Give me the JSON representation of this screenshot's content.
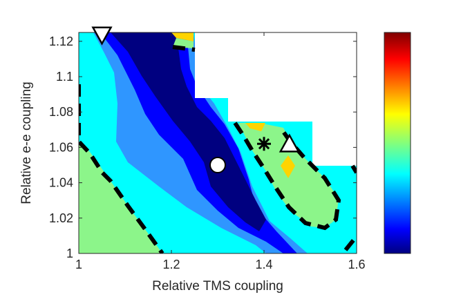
{
  "chart_data": {
    "type": "contour",
    "xlabel": "Relative TMS coupling",
    "ylabel": "Relative e-e coupling",
    "xlim": [
      1,
      1.6
    ],
    "ylim": [
      1,
      1.125
    ],
    "x_ticks": [
      1,
      1.2,
      1.4,
      1.6
    ],
    "x_tick_labels": [
      "1",
      "1.2",
      "1.4",
      "1.6"
    ],
    "y_ticks": [
      1,
      1.02,
      1.04,
      1.06,
      1.08,
      1.1,
      1.12
    ],
    "y_tick_labels": [
      "1",
      "1.02",
      "1.04",
      "1.06",
      "1.08",
      "1.1",
      "1.12"
    ],
    "grid": false,
    "colormap": "jet",
    "colorbar": {
      "position": "right",
      "tick_labels": []
    },
    "masked_region_color": "#ffffff",
    "contour_levels": [
      {
        "level": 1,
        "color": "#000080"
      },
      {
        "level": 2,
        "color": "#0000ff"
      },
      {
        "level": 3,
        "color": "#2f96ff"
      },
      {
        "level": 4,
        "color": "#00ffff"
      },
      {
        "level": 5,
        "color": "#8cf58a"
      },
      {
        "level": 6,
        "color": "#ffd400"
      }
    ],
    "markers": [
      {
        "shape": "circle",
        "x": 1.3,
        "y": 1.05,
        "fill": "#ffffff"
      },
      {
        "shape": "triangle-down",
        "x": 1.05,
        "y": 1.1235,
        "fill": "#ffffff"
      },
      {
        "shape": "triangle-up",
        "x": 1.455,
        "y": 1.062,
        "fill": "#ffffff"
      },
      {
        "shape": "asterisk",
        "x": 1.4,
        "y": 1.062,
        "fill": "#000000"
      }
    ]
  }
}
